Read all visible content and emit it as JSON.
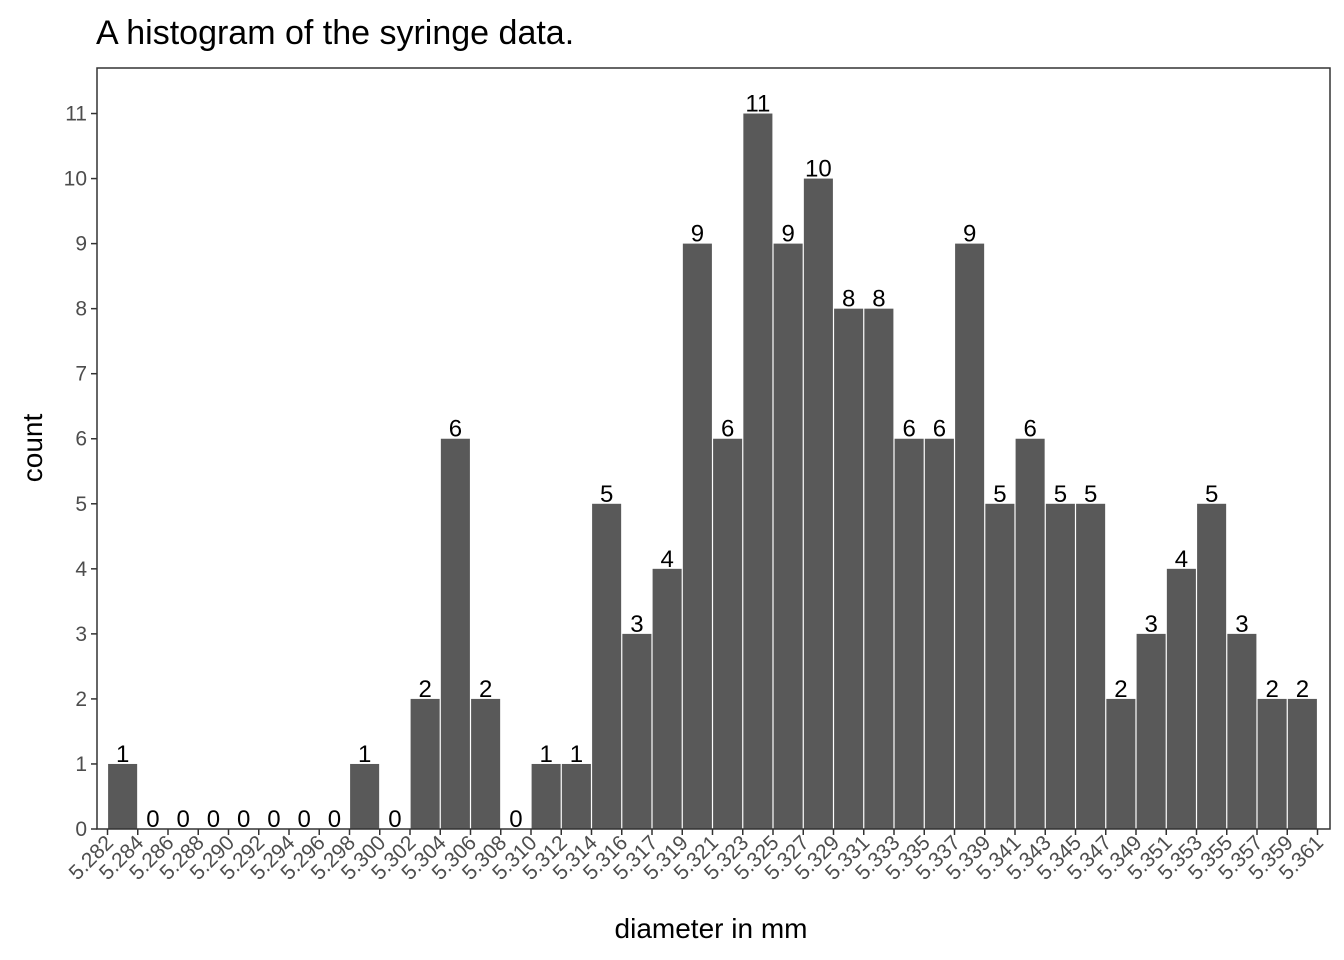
{
  "chart_data": {
    "type": "bar",
    "title": "A histogram of the syringe data.",
    "xlabel": "diameter in mm",
    "ylabel": "count",
    "x_tick_labels": [
      "5.282",
      "5.284",
      "5.286",
      "5.288",
      "5.290",
      "5.292",
      "5.294",
      "5.296",
      "5.298",
      "5.300",
      "5.302",
      "5.304",
      "5.306",
      "5.308",
      "5.310",
      "5.312",
      "5.314",
      "5.316",
      "5.317",
      "5.319",
      "5.321",
      "5.323",
      "5.325",
      "5.327",
      "5.329",
      "5.331",
      "5.333",
      "5.335",
      "5.337",
      "5.339",
      "5.341",
      "5.343",
      "5.345",
      "5.347",
      "5.349",
      "5.351",
      "5.353",
      "5.355",
      "5.357",
      "5.359",
      "5.361"
    ],
    "values": [
      1,
      0,
      0,
      0,
      0,
      0,
      0,
      0,
      1,
      0,
      2,
      6,
      2,
      0,
      1,
      1,
      5,
      3,
      4,
      9,
      6,
      11,
      9,
      10,
      8,
      8,
      6,
      6,
      9,
      5,
      6,
      5,
      5,
      2,
      3,
      4,
      5,
      3,
      2,
      2
    ],
    "y_ticks": [
      0,
      1,
      2,
      3,
      4,
      5,
      6,
      7,
      8,
      9,
      10,
      11
    ],
    "ylim": [
      0,
      11.7
    ],
    "grid": false,
    "bar_color": "#595959",
    "panel_border_color": "#333333",
    "tick_color": "#333333",
    "label_color": "#4d4d4d"
  }
}
